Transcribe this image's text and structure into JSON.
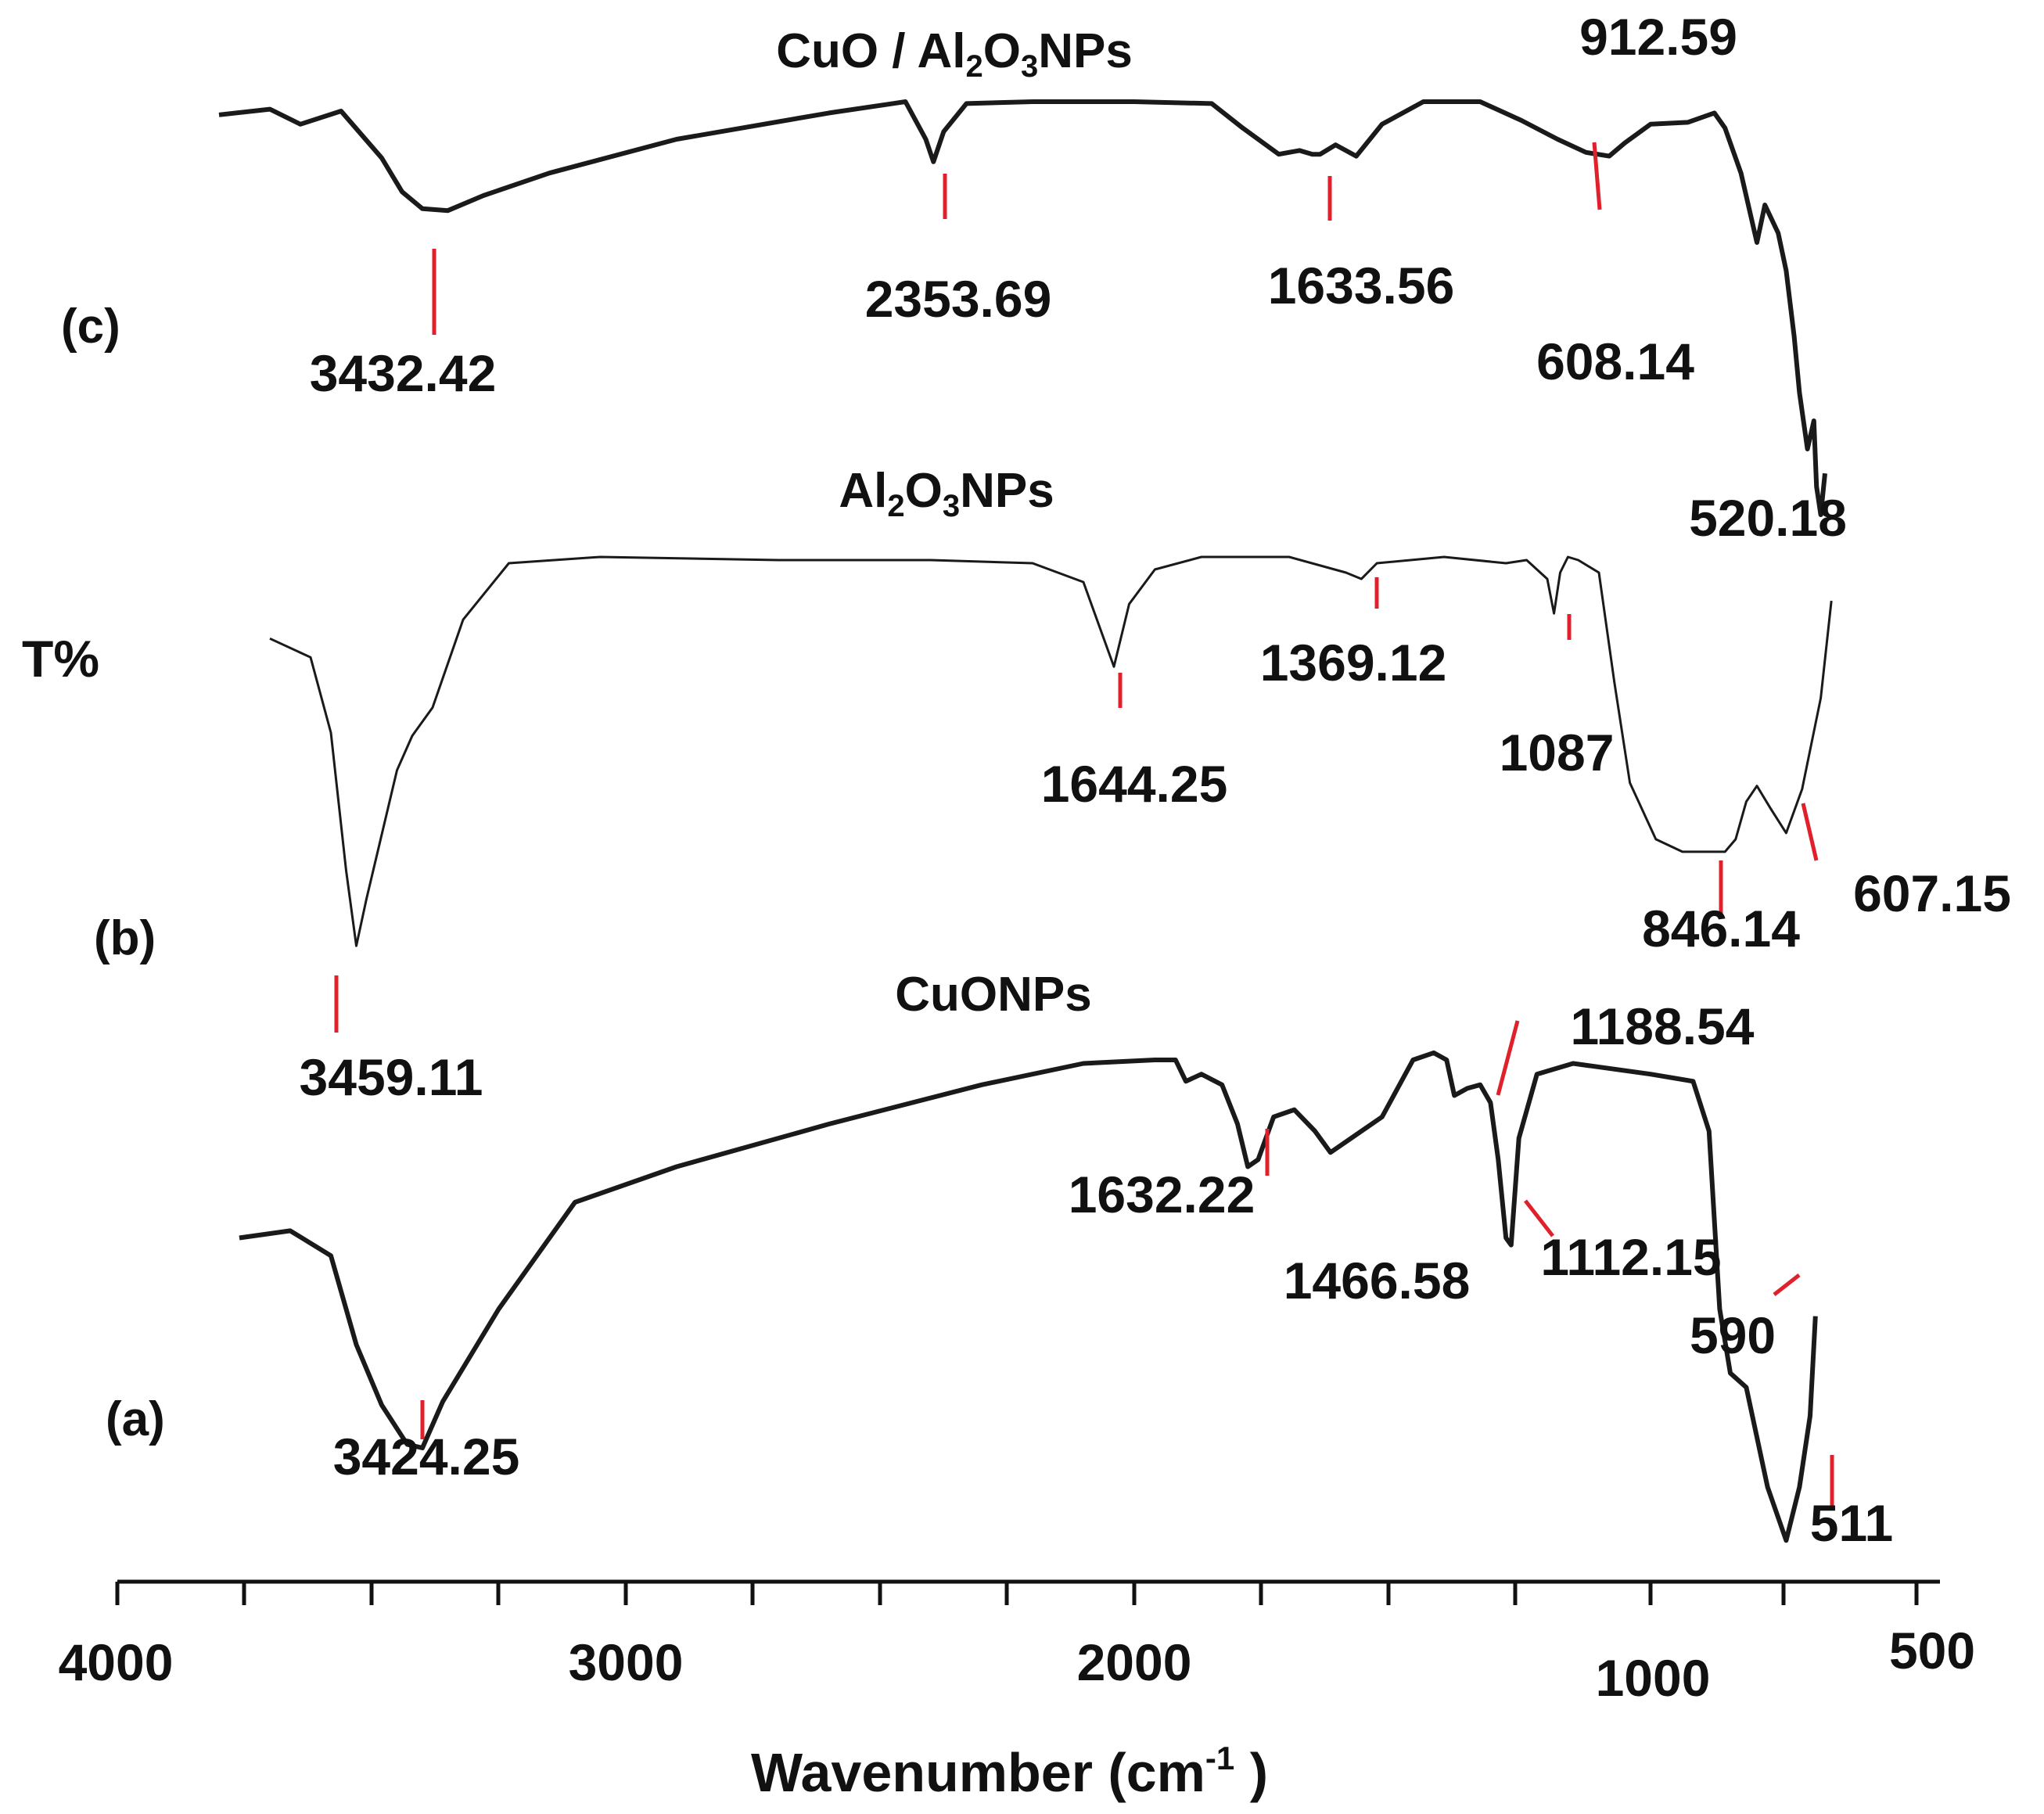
{
  "chart_data": {
    "type": "line",
    "xlabel": "Wavenumber (cm",
    "xlabel_sup": "-1",
    "xlabel_end": " )",
    "ylabel": "T%",
    "xlim": [
      4000,
      500
    ],
    "x_axis_reversed": true,
    "x_tick_labels": [
      "4000",
      "3000",
      "2000",
      "1000",
      "500"
    ],
    "colors": {
      "trace": "#1a1a1a",
      "marker": "#e0202a",
      "axis": "#111111"
    },
    "series": [
      {
        "id": "c",
        "tag": "(c)",
        "title_parts": [
          {
            "t": "CuO / Al",
            "s": "normal"
          },
          {
            "t": "2",
            "s": "sub"
          },
          {
            "t": "O",
            "s": "normal"
          },
          {
            "t": "3",
            "s": "sub"
          },
          {
            "t": "NPs",
            "s": "normal"
          }
        ],
        "points": [
          [
            3800,
            0.93
          ],
          [
            3700,
            0.96
          ],
          [
            3640,
            0.88
          ],
          [
            3560,
            0.95
          ],
          [
            3480,
            0.7
          ],
          [
            3440,
            0.52
          ],
          [
            3400,
            0.43
          ],
          [
            3350,
            0.42
          ],
          [
            3280,
            0.5
          ],
          [
            3150,
            0.62
          ],
          [
            2900,
            0.8
          ],
          [
            2600,
            0.94
          ],
          [
            2450,
            1.0
          ],
          [
            2410,
            0.8
          ],
          [
            2395,
            0.68
          ],
          [
            2375,
            0.84
          ],
          [
            2330,
            0.99
          ],
          [
            2200,
            1.0
          ],
          [
            2000,
            1.0
          ],
          [
            1850,
            0.99
          ],
          [
            1790,
            0.86
          ],
          [
            1720,
            0.72
          ],
          [
            1680,
            0.74
          ],
          [
            1655,
            0.72
          ],
          [
            1640,
            0.72
          ],
          [
            1610,
            0.77
          ],
          [
            1570,
            0.71
          ],
          [
            1520,
            0.88
          ],
          [
            1440,
            1.0
          ],
          [
            1330,
            1.0
          ],
          [
            1250,
            0.9
          ],
          [
            1180,
            0.8
          ],
          [
            1125,
            0.73
          ],
          [
            1080,
            0.71
          ],
          [
            1050,
            0.78
          ],
          [
            1000,
            0.88
          ],
          [
            930,
            0.89
          ],
          [
            880,
            0.94
          ],
          [
            860,
            0.86
          ],
          [
            830,
            0.62
          ],
          [
            800,
            0.25
          ],
          [
            785,
            0.45
          ],
          [
            760,
            0.3
          ],
          [
            745,
            0.1
          ],
          [
            730,
            -0.25
          ],
          [
            720,
            -0.55
          ],
          [
            705,
            -0.85
          ],
          [
            693,
            -0.7
          ],
          [
            688,
            -1.05
          ],
          [
            680,
            -1.2
          ],
          [
            672,
            -0.98
          ]
        ],
        "peaks": [
          {
            "label": "3432.42",
            "x": 3432,
            "y": 0.48
          },
          {
            "label": "2353.69",
            "x": 2398,
            "y": 0.7
          },
          {
            "label": "1633.56",
            "x": 1635,
            "y": 0.72
          },
          {
            "label": "912.59",
            "x": 1090,
            "y": 0.74
          },
          {
            "label": "608.14",
            "x": 760,
            "y": 0.1
          },
          {
            "label": "520.18",
            "x": 685,
            "y": -1.05
          }
        ]
      },
      {
        "id": "b",
        "tag": "(b)",
        "title_parts": [
          {
            "t": "Al",
            "s": "normal"
          },
          {
            "t": "2",
            "s": "sub"
          },
          {
            "t": "O",
            "s": "normal"
          },
          {
            "t": "3",
            "s": "sub"
          },
          {
            "t": "NPs",
            "s": "normal"
          }
        ],
        "points": [
          [
            3700,
            0.74
          ],
          [
            3620,
            0.68
          ],
          [
            3580,
            0.44
          ],
          [
            3550,
            0.0
          ],
          [
            3530,
            -0.24
          ],
          [
            3510,
            -0.09
          ],
          [
            3450,
            0.32
          ],
          [
            3420,
            0.43
          ],
          [
            3380,
            0.52
          ],
          [
            3320,
            0.8
          ],
          [
            3230,
            0.98
          ],
          [
            3050,
            1.0
          ],
          [
            2700,
            0.99
          ],
          [
            2400,
            0.99
          ],
          [
            2200,
            0.98
          ],
          [
            2100,
            0.92
          ],
          [
            2060,
            0.74
          ],
          [
            2040,
            0.65
          ],
          [
            2010,
            0.85
          ],
          [
            1960,
            0.96
          ],
          [
            1870,
            1.0
          ],
          [
            1700,
            1.0
          ],
          [
            1590,
            0.95
          ],
          [
            1560,
            0.93
          ],
          [
            1530,
            0.98
          ],
          [
            1400,
            1.0
          ],
          [
            1280,
            0.98
          ],
          [
            1240,
            0.99
          ],
          [
            1200,
            0.93
          ],
          [
            1187,
            0.82
          ],
          [
            1175,
            0.95
          ],
          [
            1160,
            1.0
          ],
          [
            1140,
            0.99
          ],
          [
            1100,
            0.95
          ],
          [
            1070,
            0.6
          ],
          [
            1040,
            0.28
          ],
          [
            990,
            0.1
          ],
          [
            940,
            0.06
          ],
          [
            860,
            0.06
          ],
          [
            840,
            0.1
          ],
          [
            820,
            0.22
          ],
          [
            800,
            0.27
          ],
          [
            775,
            0.2
          ],
          [
            745,
            0.12
          ],
          [
            715,
            0.26
          ],
          [
            680,
            0.55
          ],
          [
            660,
            0.86
          ]
        ],
        "peaks": [
          {
            "label": "3459.11",
            "x": 3530,
            "y": -0.2
          },
          {
            "label": "1644.25",
            "x": 2040,
            "y": 0.65
          },
          {
            "label": "1369.12",
            "x": 1555,
            "y": 0.93
          },
          {
            "label": "1087",
            "x": 1187,
            "y": 0.82
          },
          {
            "label": "846.14",
            "x": 850,
            "y": 0.06
          },
          {
            "label": "607.15",
            "x": 753,
            "y": 0.14
          }
        ]
      },
      {
        "id": "a",
        "tag": "(a)",
        "title_parts": [
          {
            "t": "CuONPs",
            "s": "normal"
          }
        ],
        "points": [
          [
            3760,
            0.5
          ],
          [
            3660,
            0.52
          ],
          [
            3580,
            0.45
          ],
          [
            3530,
            0.2
          ],
          [
            3480,
            0.03
          ],
          [
            3430,
            -0.08
          ],
          [
            3400,
            -0.09
          ],
          [
            3360,
            0.04
          ],
          [
            3250,
            0.3
          ],
          [
            3100,
            0.6
          ],
          [
            2900,
            0.7
          ],
          [
            2600,
            0.82
          ],
          [
            2300,
            0.93
          ],
          [
            2100,
            0.99
          ],
          [
            1960,
            1.0
          ],
          [
            1920,
            1.0
          ],
          [
            1900,
            0.94
          ],
          [
            1870,
            0.96
          ],
          [
            1830,
            0.93
          ],
          [
            1800,
            0.82
          ],
          [
            1780,
            0.7
          ],
          [
            1760,
            0.72
          ],
          [
            1730,
            0.84
          ],
          [
            1690,
            0.86
          ],
          [
            1650,
            0.8
          ],
          [
            1620,
            0.74
          ],
          [
            1580,
            0.78
          ],
          [
            1520,
            0.84
          ],
          [
            1460,
            1.0
          ],
          [
            1420,
            1.02
          ],
          [
            1395,
            1.0
          ],
          [
            1380,
            0.9
          ],
          [
            1355,
            0.92
          ],
          [
            1330,
            0.93
          ],
          [
            1310,
            0.88
          ],
          [
            1295,
            0.72
          ],
          [
            1280,
            0.5
          ],
          [
            1270,
            0.48
          ],
          [
            1255,
            0.78
          ],
          [
            1220,
            0.96
          ],
          [
            1150,
            0.99
          ],
          [
            1000,
            0.96
          ],
          [
            920,
            0.94
          ],
          [
            890,
            0.8
          ],
          [
            870,
            0.3
          ],
          [
            850,
            0.12
          ],
          [
            820,
            0.08
          ],
          [
            780,
            -0.2
          ],
          [
            745,
            -0.35
          ],
          [
            720,
            -0.2
          ],
          [
            700,
            0.0
          ],
          [
            690,
            0.28
          ]
        ],
        "peaks": [
          {
            "label": "3424.25",
            "x": 3405,
            "y": -0.09
          },
          {
            "label": "1632.22",
            "x": 1777,
            "y": 0.7
          },
          {
            "label": "1466.58",
            "x": 1620,
            "y": 0.74
          },
          {
            "label": "1188.54",
            "x": 1315,
            "y": 0.88
          },
          {
            "label": "1112.15",
            "x": 1265,
            "y": 0.48
          },
          {
            "label": "590",
            "x": 842,
            "y": 0.1
          },
          {
            "label": "511",
            "x": 745,
            "y": -0.35
          }
        ]
      }
    ]
  }
}
